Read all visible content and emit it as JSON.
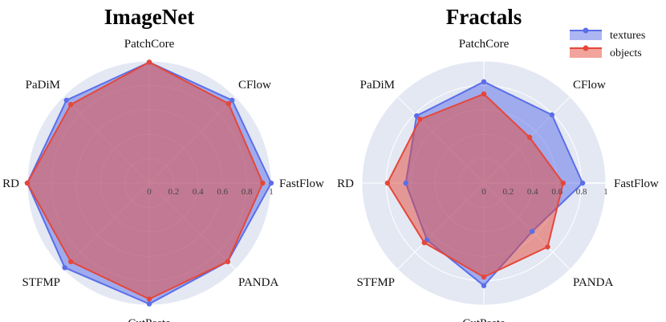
{
  "chart_data": [
    {
      "type": "radar",
      "title": "ImageNet",
      "axes": [
        "PatchCore",
        "CFlow",
        "FastFlow",
        "PANDA",
        "CutPaste",
        "STFMP",
        "RD",
        "PaDiM"
      ],
      "radial_ticks": [
        "0",
        "0.2",
        "0.4",
        "0.6",
        "0.8",
        "1"
      ],
      "rlim": [
        0,
        1
      ],
      "series": [
        {
          "name": "textures",
          "color": "#5b6ee8",
          "values": [
            0.99,
            0.96,
            1.0,
            0.91,
            0.99,
            0.98,
            1.0,
            0.96
          ]
        },
        {
          "name": "objects",
          "color": "#e5473a",
          "values": [
            0.99,
            0.92,
            0.93,
            0.91,
            0.95,
            0.91,
            1.0,
            0.91
          ]
        }
      ]
    },
    {
      "type": "radar",
      "title": "Fractals",
      "axes": [
        "PatchCore",
        "CFlow",
        "FastFlow",
        "PANDA",
        "CutPaste",
        "STFMP",
        "RD",
        "PaDiM"
      ],
      "radial_ticks": [
        "0",
        "0.2",
        "0.4",
        "0.6",
        "0.8",
        "1"
      ],
      "rlim": [
        0,
        1
      ],
      "legend": {
        "placement": "top-right",
        "entries": [
          "textures",
          "objects"
        ]
      },
      "series": [
        {
          "name": "textures",
          "color": "#5b6ee8",
          "values": [
            0.83,
            0.79,
            0.81,
            0.56,
            0.84,
            0.66,
            0.64,
            0.78
          ]
        },
        {
          "name": "objects",
          "color": "#e5473a",
          "values": [
            0.73,
            0.53,
            0.65,
            0.74,
            0.77,
            0.69,
            0.79,
            0.74
          ]
        }
      ]
    }
  ]
}
